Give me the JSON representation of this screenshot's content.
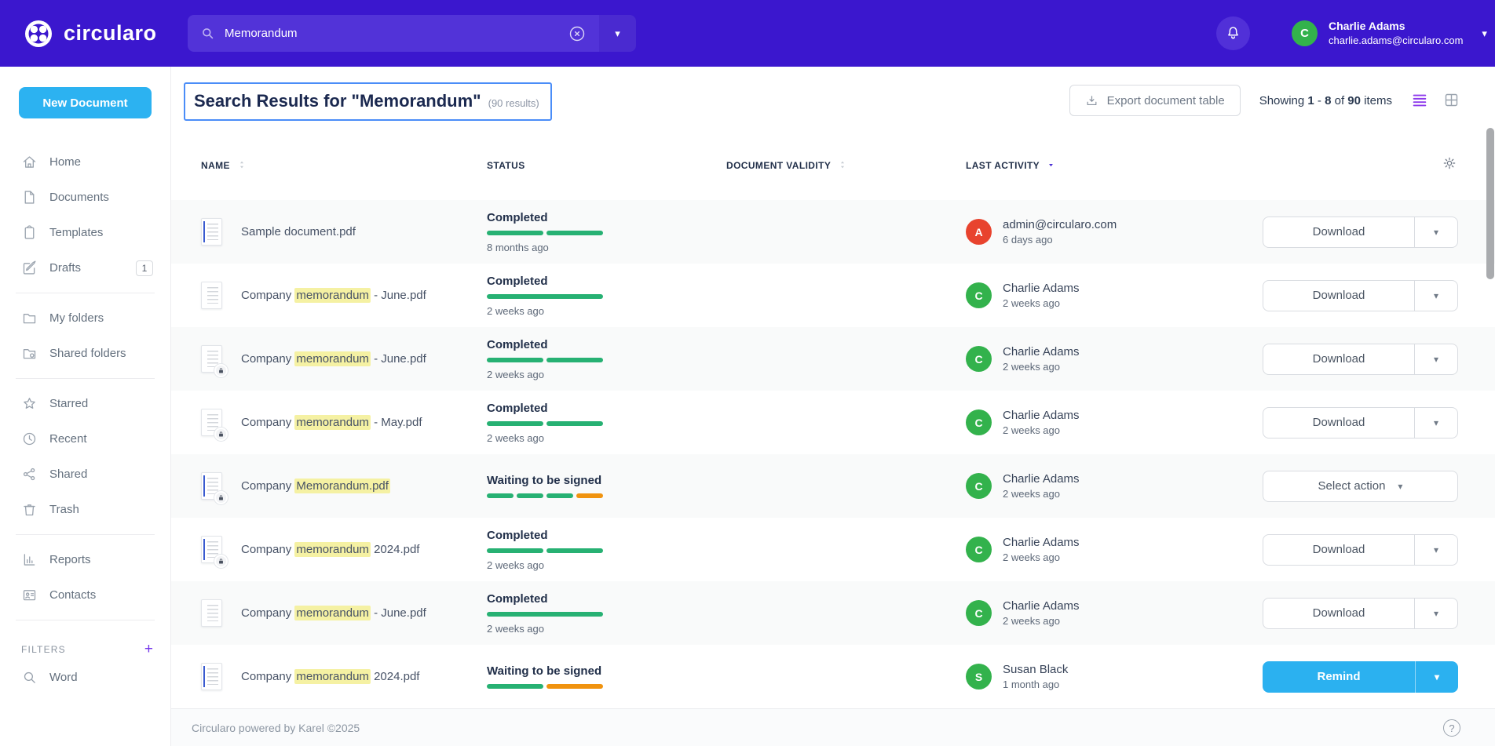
{
  "header": {
    "logo_text": "circularo",
    "search": {
      "value": "Memorandum",
      "clear_icon": "circle-x-icon",
      "dropdown_icon": "caret-down-icon"
    },
    "notifications_icon": "bell-icon",
    "user": {
      "initial": "C",
      "name": "Charlie Adams",
      "email": "charlie.adams@circularo.com"
    }
  },
  "colors": {
    "header_bg": "#3b17ce",
    "accent_blue": "#2bb1f0",
    "accent_purple": "#8d3aec",
    "progress_green": "#27b173",
    "progress_orange": "#f0930f",
    "highlight_yellow": "#f5f1a3",
    "avatar_green": "#33b24c",
    "avatar_red": "#e8432e",
    "title_focus_border": "#4a8df8"
  },
  "sidebar": {
    "new_document_label": "New Document",
    "groups": [
      {
        "items": [
          {
            "icon": "home",
            "label": "Home"
          },
          {
            "icon": "document",
            "label": "Documents"
          },
          {
            "icon": "template",
            "label": "Templates"
          },
          {
            "icon": "drafts",
            "label": "Drafts",
            "badge": "1"
          }
        ]
      },
      {
        "items": [
          {
            "icon": "folder",
            "label": "My folders"
          },
          {
            "icon": "shared-folder",
            "label": "Shared folders"
          }
        ]
      },
      {
        "items": [
          {
            "icon": "star",
            "label": "Starred"
          },
          {
            "icon": "clock",
            "label": "Recent"
          },
          {
            "icon": "share",
            "label": "Shared"
          },
          {
            "icon": "trash",
            "label": "Trash"
          }
        ]
      },
      {
        "items": [
          {
            "icon": "reports",
            "label": "Reports"
          },
          {
            "icon": "contacts",
            "label": "Contacts"
          }
        ]
      }
    ],
    "filters": {
      "label": "FILTERS",
      "add_icon": "plus-icon",
      "items": [
        {
          "icon": "search",
          "label": "Word"
        }
      ]
    }
  },
  "toolbar": {
    "title": "Search Results for \"Memorandum\"",
    "results_note": "(90 results)",
    "export_label": "Export document table",
    "export_icon": "download-icon",
    "showing": {
      "prefix": "Showing",
      "from": "1",
      "sep": "-",
      "to": "8",
      "of": "of",
      "total": "90",
      "suffix": "items"
    },
    "view_icons": {
      "active": "list-view-icon",
      "inactive": "grid-view-icon"
    }
  },
  "table": {
    "columns": [
      {
        "label": "NAME",
        "sort": "both"
      },
      {
        "label": "STATUS",
        "sort": "none"
      },
      {
        "label": "DOCUMENT VALIDITY",
        "sort": "both"
      },
      {
        "label": "LAST ACTIVITY",
        "sort": "desc"
      }
    ],
    "settings_icon": "gear-icon"
  },
  "rows": [
    {
      "name_pre": "Sample document.pdf",
      "name_hl": "",
      "name_post": "",
      "locked": false,
      "edge": true,
      "status": "Completed",
      "segments": [
        "green",
        "green"
      ],
      "time": "8 months ago",
      "activity": {
        "initial": "A",
        "color": "#e8432e",
        "name": "admin@circularo.com",
        "time": "6 days ago"
      },
      "action": {
        "type": "download",
        "label": "Download"
      }
    },
    {
      "name_pre": "Company ",
      "name_hl": "memorandum",
      "name_post": " - June.pdf",
      "locked": false,
      "edge": false,
      "status": "Completed",
      "segments": [
        "green"
      ],
      "time": "2 weeks ago",
      "activity": {
        "initial": "C",
        "color": "#33b24c",
        "name": "Charlie Adams",
        "time": "2 weeks ago"
      },
      "action": {
        "type": "download",
        "label": "Download"
      }
    },
    {
      "name_pre": "Company ",
      "name_hl": "memorandum",
      "name_post": " - June.pdf",
      "locked": true,
      "edge": false,
      "status": "Completed",
      "segments": [
        "green",
        "green"
      ],
      "time": "2 weeks ago",
      "activity": {
        "initial": "C",
        "color": "#33b24c",
        "name": "Charlie Adams",
        "time": "2 weeks ago"
      },
      "action": {
        "type": "download",
        "label": "Download"
      }
    },
    {
      "name_pre": "Company ",
      "name_hl": "memorandum",
      "name_post": " - May.pdf",
      "locked": true,
      "edge": false,
      "status": "Completed",
      "segments": [
        "green",
        "green"
      ],
      "time": "2 weeks ago",
      "activity": {
        "initial": "C",
        "color": "#33b24c",
        "name": "Charlie Adams",
        "time": "2 weeks ago"
      },
      "action": {
        "type": "download",
        "label": "Download"
      }
    },
    {
      "name_pre": "Company ",
      "name_hl": "Memorandum.pdf",
      "name_post": "",
      "locked": true,
      "edge": true,
      "status": "Waiting to be signed",
      "segments": [
        "green",
        "green",
        "green",
        "orange"
      ],
      "time": "",
      "activity": {
        "initial": "C",
        "color": "#33b24c",
        "name": "Charlie Adams",
        "time": "2 weeks ago"
      },
      "action": {
        "type": "select",
        "label": "Select action"
      }
    },
    {
      "name_pre": "Company ",
      "name_hl": "memorandum",
      "name_post": " 2024.pdf",
      "locked": true,
      "edge": true,
      "status": "Completed",
      "segments": [
        "green",
        "green"
      ],
      "time": "2 weeks ago",
      "activity": {
        "initial": "C",
        "color": "#33b24c",
        "name": "Charlie Adams",
        "time": "2 weeks ago"
      },
      "action": {
        "type": "download",
        "label": "Download"
      }
    },
    {
      "name_pre": "Company ",
      "name_hl": "memorandum",
      "name_post": " - June.pdf",
      "locked": false,
      "edge": false,
      "status": "Completed",
      "segments": [
        "green"
      ],
      "time": "2 weeks ago",
      "activity": {
        "initial": "C",
        "color": "#33b24c",
        "name": "Charlie Adams",
        "time": "2 weeks ago"
      },
      "action": {
        "type": "download",
        "label": "Download"
      }
    },
    {
      "name_pre": "Company ",
      "name_hl": "memorandum",
      "name_post": " 2024.pdf",
      "locked": false,
      "edge": true,
      "status": "Waiting to be signed",
      "segments": [
        "green",
        "orange"
      ],
      "time": "",
      "activity": {
        "initial": "S",
        "color": "#33b24c",
        "name": "Susan Black",
        "time": "1 month ago"
      },
      "action": {
        "type": "remind",
        "label": "Remind"
      }
    }
  ],
  "footer": {
    "text": "Circularo powered by Karel ©2025",
    "help_icon": "question-icon"
  }
}
